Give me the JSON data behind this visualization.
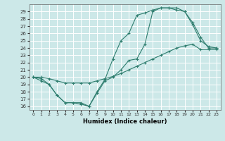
{
  "xlabel": "Humidex (Indice chaleur)",
  "ylabel": "",
  "xlim": [
    -0.5,
    23.5
  ],
  "ylim": [
    15.5,
    30.0
  ],
  "yticks": [
    16,
    17,
    18,
    19,
    20,
    21,
    22,
    23,
    24,
    25,
    26,
    27,
    28,
    29
  ],
  "xticks": [
    0,
    1,
    2,
    3,
    4,
    5,
    6,
    7,
    8,
    9,
    10,
    11,
    12,
    13,
    14,
    15,
    16,
    17,
    18,
    19,
    20,
    21,
    22,
    23
  ],
  "line_color": "#2e7d6e",
  "bg_color": "#cce8e8",
  "grid_color": "#ffffff",
  "line1": {
    "x": [
      0,
      1,
      2,
      3,
      4,
      5,
      6,
      7,
      8,
      9,
      10,
      11,
      12,
      13,
      14,
      15,
      16,
      17,
      18,
      19,
      20,
      21,
      22,
      23
    ],
    "y": [
      20.0,
      19.5,
      19.0,
      17.5,
      16.5,
      16.5,
      16.5,
      16.0,
      17.8,
      19.5,
      20.0,
      21.0,
      22.3,
      22.5,
      24.5,
      29.0,
      29.5,
      29.5,
      29.5,
      29.0,
      27.5,
      25.5,
      24.0,
      24.0
    ]
  },
  "line2": {
    "x": [
      0,
      1,
      2,
      3,
      4,
      5,
      6,
      7,
      8,
      9,
      10,
      11,
      12,
      13,
      14,
      15,
      16,
      17,
      18,
      19,
      20,
      21,
      22,
      23
    ],
    "y": [
      20.0,
      19.8,
      19.0,
      17.5,
      16.5,
      16.5,
      16.3,
      16.0,
      18.0,
      19.7,
      22.5,
      25.0,
      26.0,
      28.5,
      28.8,
      29.2,
      29.5,
      29.5,
      29.2,
      29.0,
      27.2,
      25.0,
      24.2,
      24.0
    ]
  },
  "line3": {
    "x": [
      0,
      1,
      2,
      3,
      4,
      5,
      6,
      7,
      8,
      9,
      10,
      11,
      12,
      13,
      14,
      15,
      16,
      17,
      18,
      19,
      20,
      21,
      22,
      23
    ],
    "y": [
      20.0,
      20.0,
      19.8,
      19.5,
      19.2,
      19.2,
      19.2,
      19.2,
      19.5,
      19.8,
      20.1,
      20.5,
      21.0,
      21.5,
      22.0,
      22.5,
      23.0,
      23.5,
      24.0,
      24.3,
      24.5,
      23.8,
      23.8,
      23.8
    ]
  }
}
